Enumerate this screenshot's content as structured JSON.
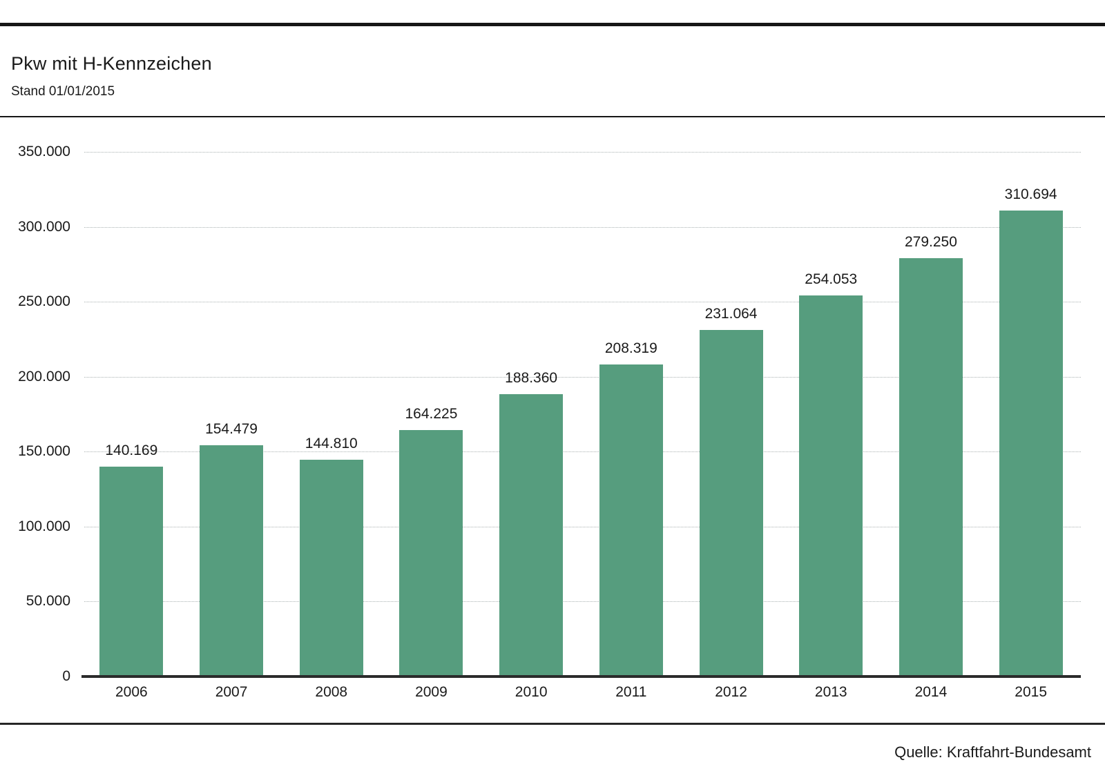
{
  "header": {
    "title": "Pkw mit H-Kennzeichen",
    "subtitle": "Stand 01/01/2015"
  },
  "footer": {
    "source": "Quelle: Kraftfahrt-Bundesamt"
  },
  "chart_data": {
    "type": "bar",
    "title": "Pkw mit H-Kennzeichen",
    "subtitle": "Stand 01/01/2015",
    "source": "Quelle: Kraftfahrt-Bundesamt",
    "categories": [
      "2006",
      "2007",
      "2008",
      "2009",
      "2010",
      "2011",
      "2012",
      "2013",
      "2014",
      "2015"
    ],
    "values": [
      140169,
      154479,
      144810,
      164225,
      188360,
      208319,
      231064,
      254053,
      279250,
      310694
    ],
    "value_labels": [
      "140.169",
      "154.479",
      "144.810",
      "164.225",
      "188.360",
      "208.319",
      "231.064",
      "254.053",
      "279.250",
      "310.694"
    ],
    "xlabel": "",
    "ylabel": "",
    "ylim": [
      0,
      350000
    ],
    "y_tick_step": 50000,
    "y_tick_labels": [
      "0",
      "50.000",
      "100.000",
      "150.000",
      "200.000",
      "250.000",
      "300.000",
      "350.000"
    ],
    "grid": true,
    "gridline_style": "dotted",
    "legend_position": "none",
    "bar_color": "#569d7e"
  }
}
